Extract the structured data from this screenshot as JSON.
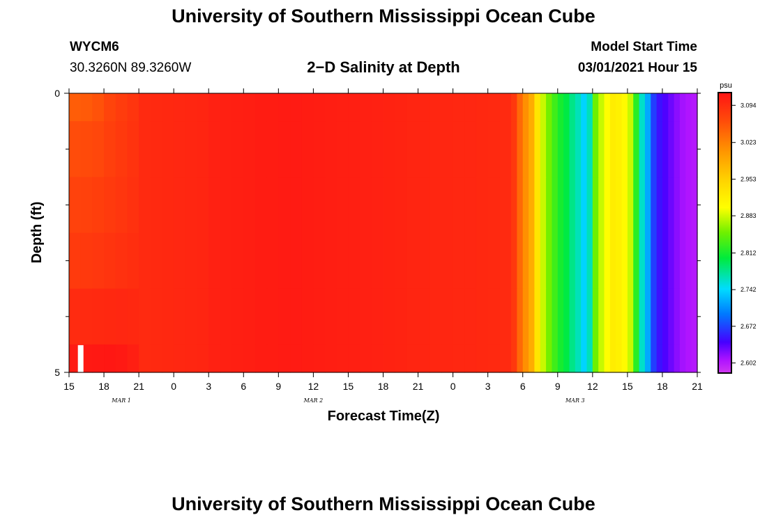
{
  "page": {
    "title_top": "University of Southern Mississippi Ocean Cube",
    "title_bottom": "University of Southern Mississippi Ocean Cube",
    "station": "WYCM6",
    "location": "30.3260N 89.3260W",
    "model_start_label": "Model Start Time",
    "model_start_value": "03/01/2021 Hour 15"
  },
  "chart_data": {
    "type": "heatmap",
    "title": "2−D Salinity at Depth",
    "xlabel": "Forecast Time(Z)",
    "ylabel": "Depth (ft)",
    "x_tick_labels": [
      "15",
      "18",
      "21",
      "0",
      "3",
      "6",
      "9",
      "12",
      "15",
      "18",
      "21",
      "0",
      "3",
      "6",
      "9",
      "12",
      "15",
      "18",
      "21"
    ],
    "x_hours": [
      0,
      3,
      6,
      9,
      12,
      15,
      18,
      21,
      24,
      27,
      30,
      33,
      36,
      39,
      42,
      45,
      48,
      51,
      54
    ],
    "xlim": [
      0,
      54
    ],
    "date_labels": [
      {
        "text": "MAR 1",
        "hour": 4.5
      },
      {
        "text": "MAR 2",
        "hour": 21
      },
      {
        "text": "MAR 3",
        "hour": 43.5
      }
    ],
    "y_tick_labels": [
      "0",
      "5"
    ],
    "ylim": [
      0,
      5
    ],
    "depth_levels": [
      0.25,
      1.0,
      2.0,
      3.0,
      4.0,
      4.75
    ],
    "colorbar": {
      "unit": "psu",
      "tick_labels": [
        "3.094",
        "3.023",
        "2.953",
        "2.883",
        "2.812",
        "2.742",
        "2.672",
        "2.602"
      ],
      "tick_values": [
        3.094,
        3.023,
        2.953,
        2.883,
        2.812,
        2.742,
        2.672,
        2.602
      ],
      "vmin": 2.584,
      "vmax": 3.117
    },
    "time_profile_hours": [
      0,
      1,
      2,
      3,
      4,
      5,
      6,
      7,
      8,
      9,
      10,
      11,
      12,
      13,
      14,
      15,
      16,
      17,
      18,
      19,
      20,
      21,
      22,
      23,
      24,
      25,
      26,
      27,
      28,
      29,
      30,
      31,
      32,
      33,
      34,
      35,
      36,
      37,
      38,
      38.5,
      39,
      39.5,
      40,
      40.5,
      41,
      41.5,
      42,
      42.5,
      43,
      43.5,
      44,
      44.5,
      45,
      45.5,
      46,
      46.5,
      47,
      47.5,
      48,
      48.5,
      49,
      49.5,
      50,
      50.5,
      51,
      51.5,
      52,
      52.5,
      53,
      53.5
    ],
    "time_profile_values": [
      3.095,
      3.095,
      3.095,
      3.095,
      3.095,
      3.095,
      3.096,
      3.097,
      3.098,
      3.099,
      3.1,
      3.101,
      3.104,
      3.105,
      3.106,
      3.107,
      3.109,
      3.109,
      3.11,
      3.11,
      3.109,
      3.108,
      3.107,
      3.106,
      3.106,
      3.105,
      3.104,
      3.103,
      3.102,
      3.101,
      3.101,
      3.1,
      3.1,
      3.099,
      3.099,
      3.098,
      3.097,
      3.096,
      3.082,
      3.04,
      3.01,
      2.985,
      2.93,
      2.88,
      2.852,
      2.83,
      2.812,
      2.8,
      2.78,
      2.765,
      2.74,
      2.765,
      2.85,
      2.88,
      2.9,
      2.92,
      2.915,
      2.905,
      2.88,
      2.82,
      2.76,
      2.72,
      2.67,
      2.65,
      2.64,
      2.63,
      2.62,
      2.612,
      2.608,
      2.605
    ],
    "early_overrides": [
      {
        "hours": [
          0,
          1,
          2,
          3,
          4,
          5
        ],
        "values": [
          3.05,
          3.052,
          3.058,
          3.07,
          3.078,
          3.085
        ]
      },
      {
        "hours": [
          0,
          1,
          2,
          3,
          4,
          5
        ],
        "values": [
          3.063,
          3.065,
          3.068,
          3.075,
          3.081,
          3.087
        ]
      },
      {
        "hours": [
          0,
          1,
          2,
          3,
          4,
          5
        ],
        "values": [
          3.072,
          3.073,
          3.076,
          3.08,
          3.084,
          3.089
        ]
      },
      {
        "hours": [
          0,
          1,
          2,
          3,
          4,
          5
        ],
        "values": [
          3.08,
          3.081,
          3.083,
          3.086,
          3.089,
          3.092
        ]
      },
      {
        "hours": [
          0,
          1,
          2,
          3,
          4,
          5
        ],
        "values": [
          3.095,
          3.096,
          3.097,
          3.098,
          3.099,
          3.098
        ]
      },
      {
        "hours": [
          0,
          1,
          2,
          3,
          4,
          5
        ],
        "values": [
          3.11,
          3.112,
          3.113,
          3.114,
          3.112,
          3.106
        ]
      }
    ],
    "missing_cells": [
      {
        "depth": 4.75,
        "hour": 1
      }
    ]
  }
}
